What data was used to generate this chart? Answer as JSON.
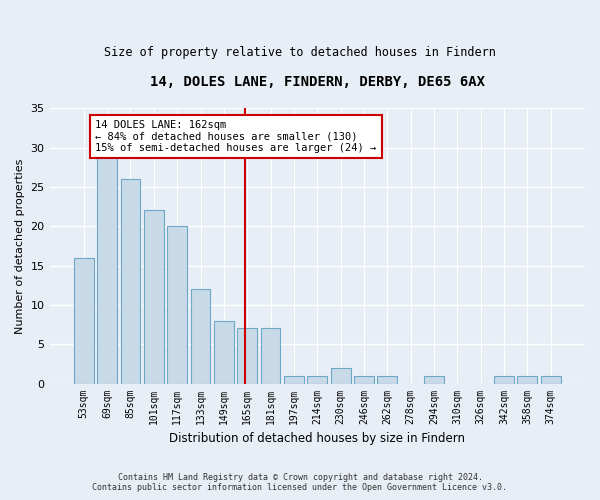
{
  "title1": "14, DOLES LANE, FINDERN, DERBY, DE65 6AX",
  "title2": "Size of property relative to detached houses in Findern",
  "xlabel": "Distribution of detached houses by size in Findern",
  "ylabel": "Number of detached properties",
  "categories": [
    "53sqm",
    "69sqm",
    "85sqm",
    "101sqm",
    "117sqm",
    "133sqm",
    "149sqm",
    "165sqm",
    "181sqm",
    "197sqm",
    "214sqm",
    "230sqm",
    "246sqm",
    "262sqm",
    "278sqm",
    "294sqm",
    "310sqm",
    "326sqm",
    "342sqm",
    "358sqm",
    "374sqm"
  ],
  "values": [
    16,
    29,
    26,
    22,
    20,
    12,
    8,
    7,
    7,
    1,
    1,
    2,
    1,
    1,
    0,
    1,
    0,
    0,
    1,
    1,
    1
  ],
  "bar_color": "#c8d9e8",
  "bar_edge_color": "#6ea8c8",
  "background_color": "#e8eef5",
  "grid_color": "#ffffff",
  "red_line_x": 6.925,
  "annotation_text": "14 DOLES LANE: 162sqm\n← 84% of detached houses are smaller (130)\n15% of semi-detached houses are larger (24) →",
  "annotation_box_color": "#ffffff",
  "annotation_box_edge": "#cc0000",
  "red_line_color": "#cc0000",
  "ylim": [
    0,
    35
  ],
  "yticks": [
    0,
    5,
    10,
    15,
    20,
    25,
    30,
    35
  ],
  "footer1": "Contains HM Land Registry data © Crown copyright and database right 2024.",
  "footer2": "Contains public sector information licensed under the Open Government Licence v3.0."
}
